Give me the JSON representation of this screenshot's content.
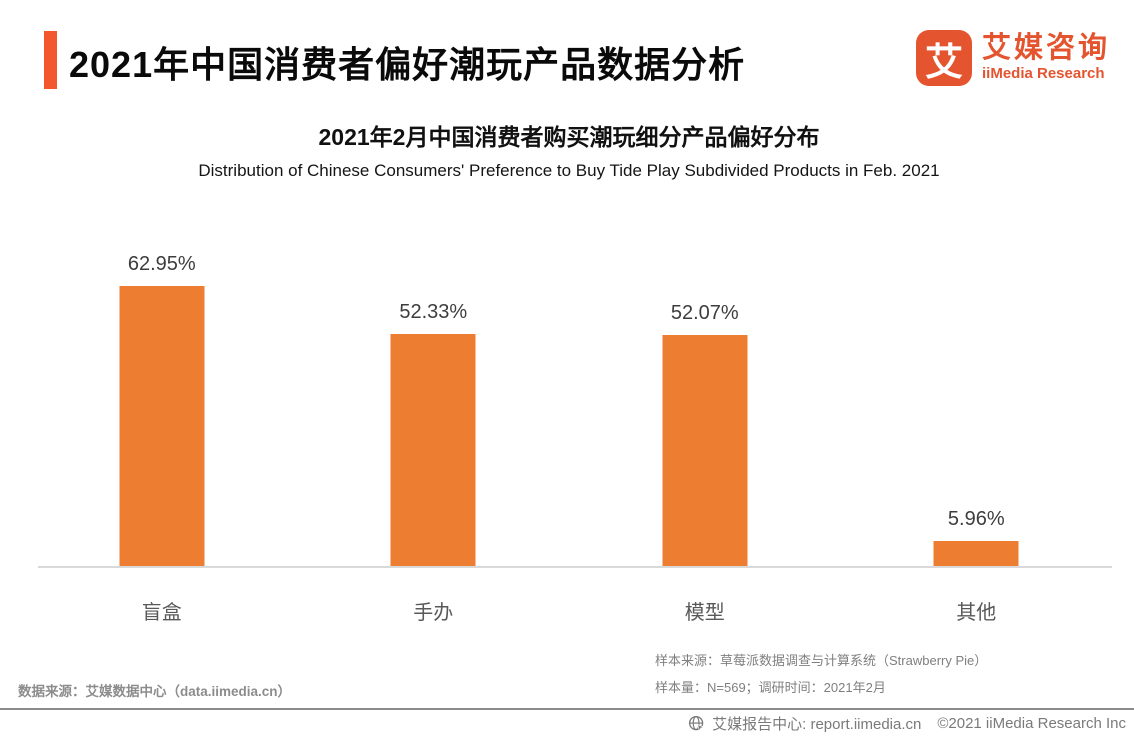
{
  "header": {
    "title": "2021年中国消费者偏好潮玩产品数据分析",
    "logo": {
      "icon_char": "艾",
      "name_cn": "艾媒咨询",
      "name_en": "iiMedia Research"
    }
  },
  "chart_data": {
    "type": "bar",
    "title": "2021年2月中国消费者购买潮玩细分产品偏好分布",
    "subtitle": "Distribution of Chinese Consumers' Preference to Buy Tide Play Subdivided Products in Feb. 2021",
    "categories": [
      "盲盒",
      "手办",
      "模型",
      "其他"
    ],
    "values": [
      62.95,
      52.33,
      52.07,
      5.96
    ],
    "value_labels": [
      "62.95%",
      "52.33%",
      "52.07%",
      "5.96%"
    ],
    "bar_color": "#ED7D31",
    "ylim": [
      0,
      70
    ],
    "grid": false,
    "legend": "none",
    "xlabel": "",
    "ylabel": ""
  },
  "footnotes": {
    "data_source": "数据来源：艾媒数据中心（data.iimedia.cn）",
    "sample_source": "样本来源：草莓派数据调查与计算系统（Strawberry Pie）",
    "sample_info": "样本量：N=569；调研时间：2021年2月"
  },
  "footer": {
    "report_center": "艾媒报告中心: report.iimedia.cn",
    "copyright": "©2021  iiMedia Research Inc"
  },
  "colors": {
    "accent": "#F2572D",
    "logo": "#E4552F",
    "bar": "#ED7D31",
    "axis": "#D9D9D9",
    "gray_text": "#7F7F7F"
  }
}
